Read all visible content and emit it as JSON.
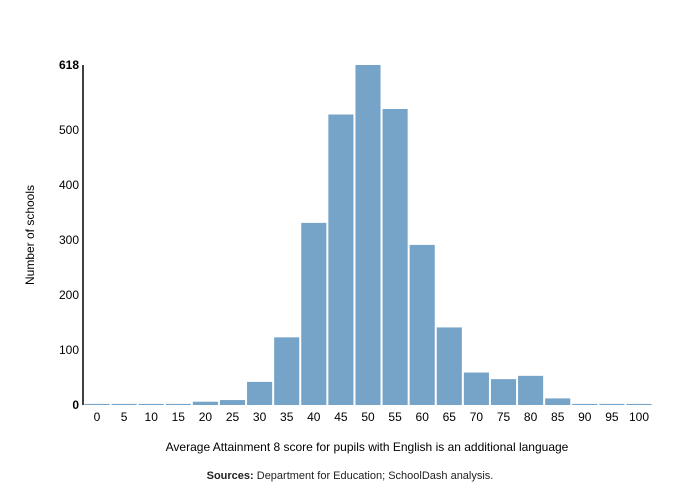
{
  "chart_data": {
    "type": "bar",
    "xlabel": "Average Attainment 8 score for pupils with English is an additional language",
    "ylabel": "Number of schools",
    "categories": [
      "0",
      "5",
      "10",
      "15",
      "20",
      "25",
      "30",
      "35",
      "40",
      "45",
      "50",
      "55",
      "60",
      "65",
      "70",
      "75",
      "80",
      "85",
      "90",
      "95",
      "100"
    ],
    "bins": [
      {
        "from": 0,
        "to": 5,
        "value": 2
      },
      {
        "from": 5,
        "to": 10,
        "value": 2
      },
      {
        "from": 10,
        "to": 15,
        "value": 2
      },
      {
        "from": 15,
        "to": 20,
        "value": 2
      },
      {
        "from": 20,
        "to": 25,
        "value": 6
      },
      {
        "from": 25,
        "to": 30,
        "value": 9
      },
      {
        "from": 30,
        "to": 35,
        "value": 42
      },
      {
        "from": 35,
        "to": 40,
        "value": 123
      },
      {
        "from": 40,
        "to": 45,
        "value": 331
      },
      {
        "from": 45,
        "to": 50,
        "value": 528
      },
      {
        "from": 50,
        "to": 55,
        "value": 618
      },
      {
        "from": 55,
        "to": 60,
        "value": 538
      },
      {
        "from": 60,
        "to": 65,
        "value": 291
      },
      {
        "from": 65,
        "to": 70,
        "value": 141
      },
      {
        "from": 70,
        "to": 75,
        "value": 59
      },
      {
        "from": 75,
        "to": 80,
        "value": 47
      },
      {
        "from": 80,
        "to": 85,
        "value": 53
      },
      {
        "from": 85,
        "to": 90,
        "value": 12
      },
      {
        "from": 90,
        "to": 95,
        "value": 2
      },
      {
        "from": 95,
        "to": 100,
        "value": 2
      },
      {
        "from": 100,
        "to": 105,
        "value": 2
      }
    ],
    "ylim": [
      0,
      618
    ],
    "yticks": [
      0,
      100,
      200,
      300,
      400,
      500,
      618
    ],
    "ytick_bold": [
      0,
      618
    ],
    "bar_color": "#76a4c9",
    "grid": false
  },
  "source": {
    "label": "Sources:",
    "text": " Department for Education; SchoolDash analysis."
  }
}
